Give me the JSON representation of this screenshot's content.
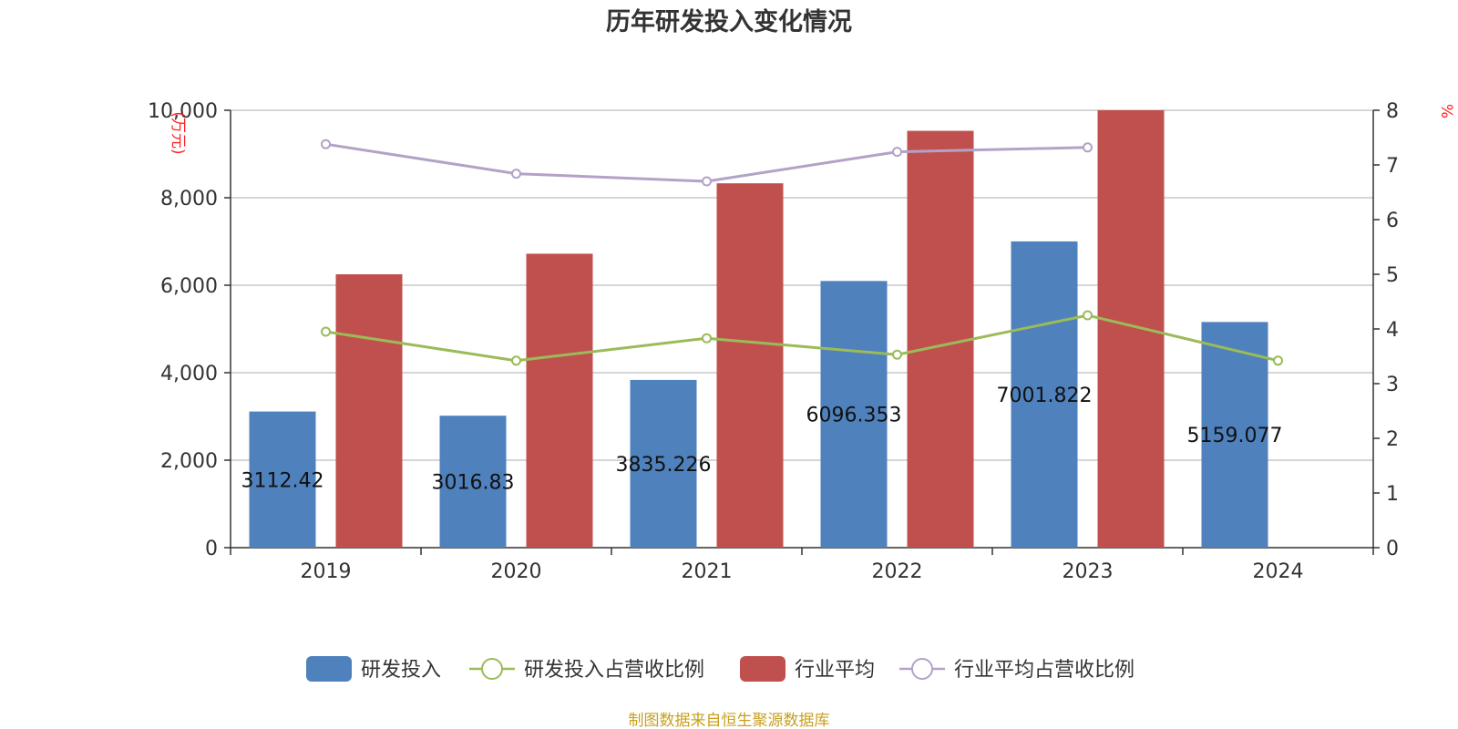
{
  "chart_data": {
    "type": "bar",
    "title": "历年研发投入变化情况",
    "categories": [
      "2019",
      "2020",
      "2021",
      "2022",
      "2023",
      "2024"
    ],
    "y_left": {
      "unit": "(万元)",
      "ylim": [
        0,
        10000
      ],
      "ticks": [
        "0",
        "2,000",
        "4,000",
        "6,000",
        "8,000",
        "10,000"
      ],
      "tick_values": [
        0,
        2000,
        4000,
        6000,
        8000,
        10000
      ]
    },
    "y_right": {
      "unit": "%",
      "ylim": [
        0,
        8
      ],
      "ticks": [
        "0",
        "1",
        "2",
        "3",
        "4",
        "5",
        "6",
        "7",
        "8"
      ],
      "tick_values": [
        0,
        1,
        2,
        3,
        4,
        5,
        6,
        7,
        8
      ]
    },
    "grid": true,
    "legend_position": "bottom",
    "series": [
      {
        "name": "研发投入",
        "type": "bar",
        "axis": "left",
        "color": "#4f81bd",
        "values": [
          3112.42,
          3016.83,
          3835.226,
          6096.353,
          7001.822,
          5159.077
        ],
        "labels": [
          "3112.42",
          "3016.83",
          "3835.226",
          "6096.353",
          "7001.822",
          "5159.077"
        ]
      },
      {
        "name": "研发投入占营收比例",
        "type": "line",
        "axis": "right",
        "color": "#9bbb59",
        "values": [
          3.95,
          3.42,
          3.83,
          3.53,
          4.25,
          3.42
        ]
      },
      {
        "name": "行业平均",
        "type": "bar",
        "axis": "left",
        "color": "#c0504d",
        "values": [
          6250,
          6720,
          8330,
          9530,
          10000,
          null
        ]
      },
      {
        "name": "行业平均占营收比例",
        "type": "line",
        "axis": "right",
        "color": "#b3a2c7",
        "values": [
          7.38,
          6.84,
          6.7,
          7.24,
          7.32,
          null
        ]
      }
    ]
  },
  "source_note": "制图数据来自恒生聚源数据库"
}
